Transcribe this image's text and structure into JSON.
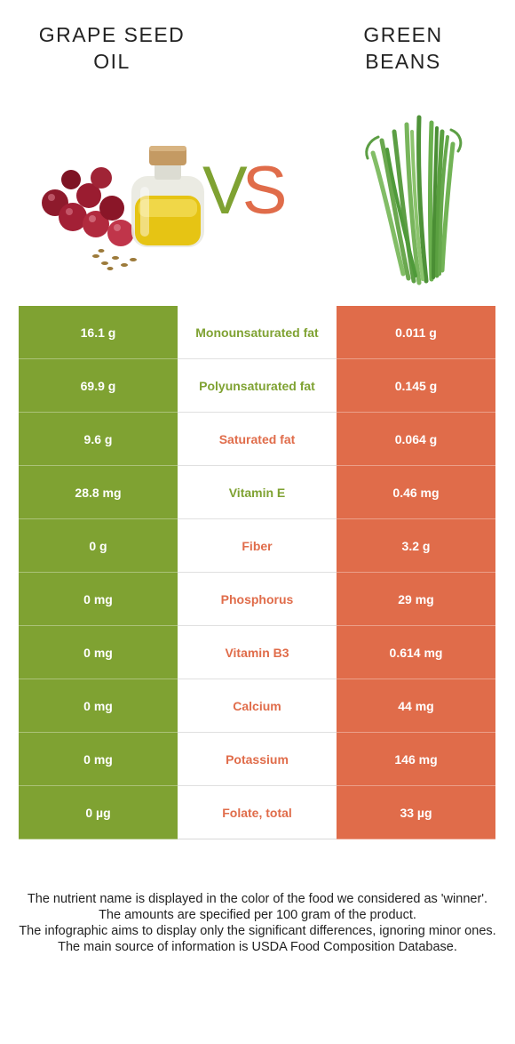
{
  "left_food": {
    "title_lines": [
      "GRAPE SEED",
      "OIL"
    ],
    "color": "#7fa232"
  },
  "right_food": {
    "title_lines": [
      "GREEN",
      "BEANS"
    ],
    "color": "#e06c4a"
  },
  "vs": {
    "v": "V",
    "s": "S"
  },
  "rows": [
    {
      "left": "16.1 g",
      "nutrient": "Monounsaturated fat",
      "right": "0.011 g",
      "winner": "left"
    },
    {
      "left": "69.9 g",
      "nutrient": "Polyunsaturated fat",
      "right": "0.145 g",
      "winner": "left"
    },
    {
      "left": "9.6 g",
      "nutrient": "Saturated fat",
      "right": "0.064 g",
      "winner": "right"
    },
    {
      "left": "28.8 mg",
      "nutrient": "Vitamin E",
      "right": "0.46 mg",
      "winner": "left"
    },
    {
      "left": "0 g",
      "nutrient": "Fiber",
      "right": "3.2 g",
      "winner": "right"
    },
    {
      "left": "0 mg",
      "nutrient": "Phosphorus",
      "right": "29 mg",
      "winner": "right"
    },
    {
      "left": "0 mg",
      "nutrient": "Vitamin B3",
      "right": "0.614 mg",
      "winner": "right"
    },
    {
      "left": "0 mg",
      "nutrient": "Calcium",
      "right": "44 mg",
      "winner": "right"
    },
    {
      "left": "0 mg",
      "nutrient": "Potassium",
      "right": "146 mg",
      "winner": "right"
    },
    {
      "left": "0 µg",
      "nutrient": "Folate, total",
      "right": "33 µg",
      "winner": "right"
    }
  ],
  "footer": {
    "line1": "The nutrient name is displayed in the color of the food we considered as 'winner'.",
    "line2": "The amounts are specified per 100 gram of the product.",
    "line3": "The infographic aims to display only the significant differences, ignoring minor ones.",
    "line4": "The main source of information is USDA Food Composition Database."
  }
}
